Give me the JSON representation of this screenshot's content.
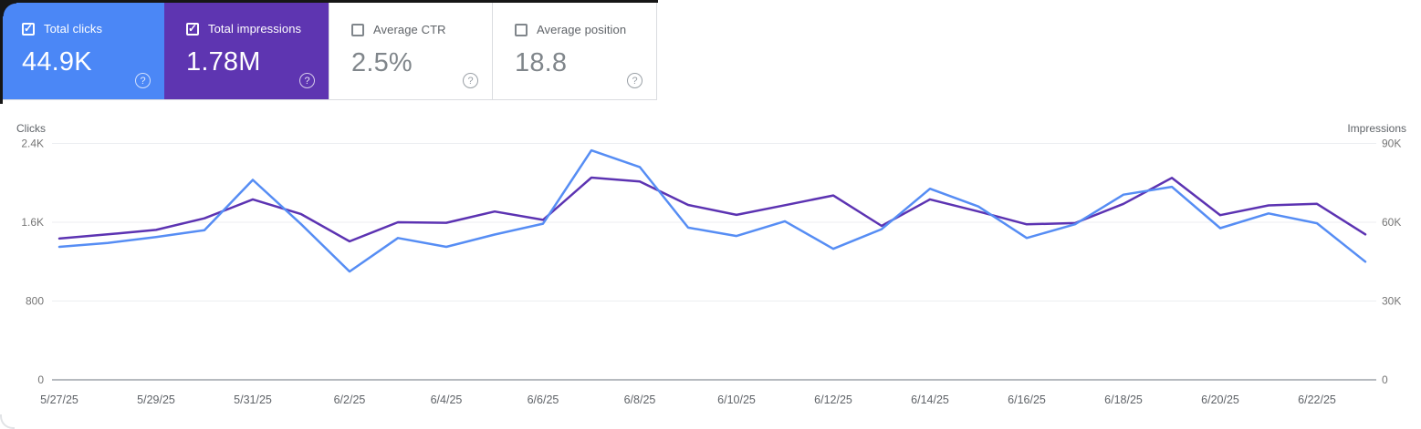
{
  "cards": [
    {
      "label": "Total clicks",
      "value": "44.9K",
      "checked": true,
      "color": "#4b87f6"
    },
    {
      "label": "Total impressions",
      "value": "1.78M",
      "checked": true,
      "color": "#5e35b1"
    },
    {
      "label": "Average CTR",
      "value": "2.5%",
      "checked": false
    },
    {
      "label": "Average position",
      "value": "18.8",
      "checked": false
    }
  ],
  "chart_data": {
    "type": "line",
    "x": [
      "5/27/25",
      "5/28/25",
      "5/29/25",
      "5/30/25",
      "5/31/25",
      "6/1/25",
      "6/2/25",
      "6/3/25",
      "6/4/25",
      "6/5/25",
      "6/6/25",
      "6/7/25",
      "6/8/25",
      "6/9/25",
      "6/10/25",
      "6/11/25",
      "6/12/25",
      "6/13/25",
      "6/14/25",
      "6/15/25",
      "6/16/25",
      "6/17/25",
      "6/18/25",
      "6/19/25",
      "6/20/25",
      "6/21/25",
      "6/22/25",
      "6/23/25"
    ],
    "x_label_every": 2,
    "series": [
      {
        "name": "Clicks",
        "axis": "left",
        "color": "#568df4",
        "values": [
          1350,
          1390,
          1450,
          1520,
          2030,
          1580,
          1100,
          1440,
          1350,
          1475,
          1585,
          2330,
          2160,
          1545,
          1460,
          1610,
          1330,
          1530,
          1940,
          1760,
          1440,
          1580,
          1880,
          1960,
          1540,
          1690,
          1590,
          1200
        ]
      },
      {
        "name": "Impressions",
        "axis": "right",
        "color": "#5c33b2",
        "values": [
          53800,
          55400,
          57100,
          61500,
          68700,
          63100,
          52700,
          60000,
          59800,
          64100,
          60900,
          77000,
          75500,
          66600,
          62800,
          66500,
          70200,
          58600,
          68700,
          64100,
          59200,
          59700,
          67000,
          76900,
          62700,
          66400,
          67000,
          55400
        ]
      }
    ],
    "left_axis": {
      "label": "Clicks",
      "ticks": [
        0,
        800,
        1600,
        2400
      ],
      "tick_labels": [
        "0",
        "800",
        "1.6K",
        "2.4K"
      ],
      "max": 2400
    },
    "right_axis": {
      "label": "Impressions",
      "ticks": [
        0,
        30000,
        60000,
        90000
      ],
      "tick_labels": [
        "0",
        "30K",
        "60K",
        "90K"
      ],
      "max": 90000
    },
    "grid": "horizontal",
    "legend": "none"
  }
}
